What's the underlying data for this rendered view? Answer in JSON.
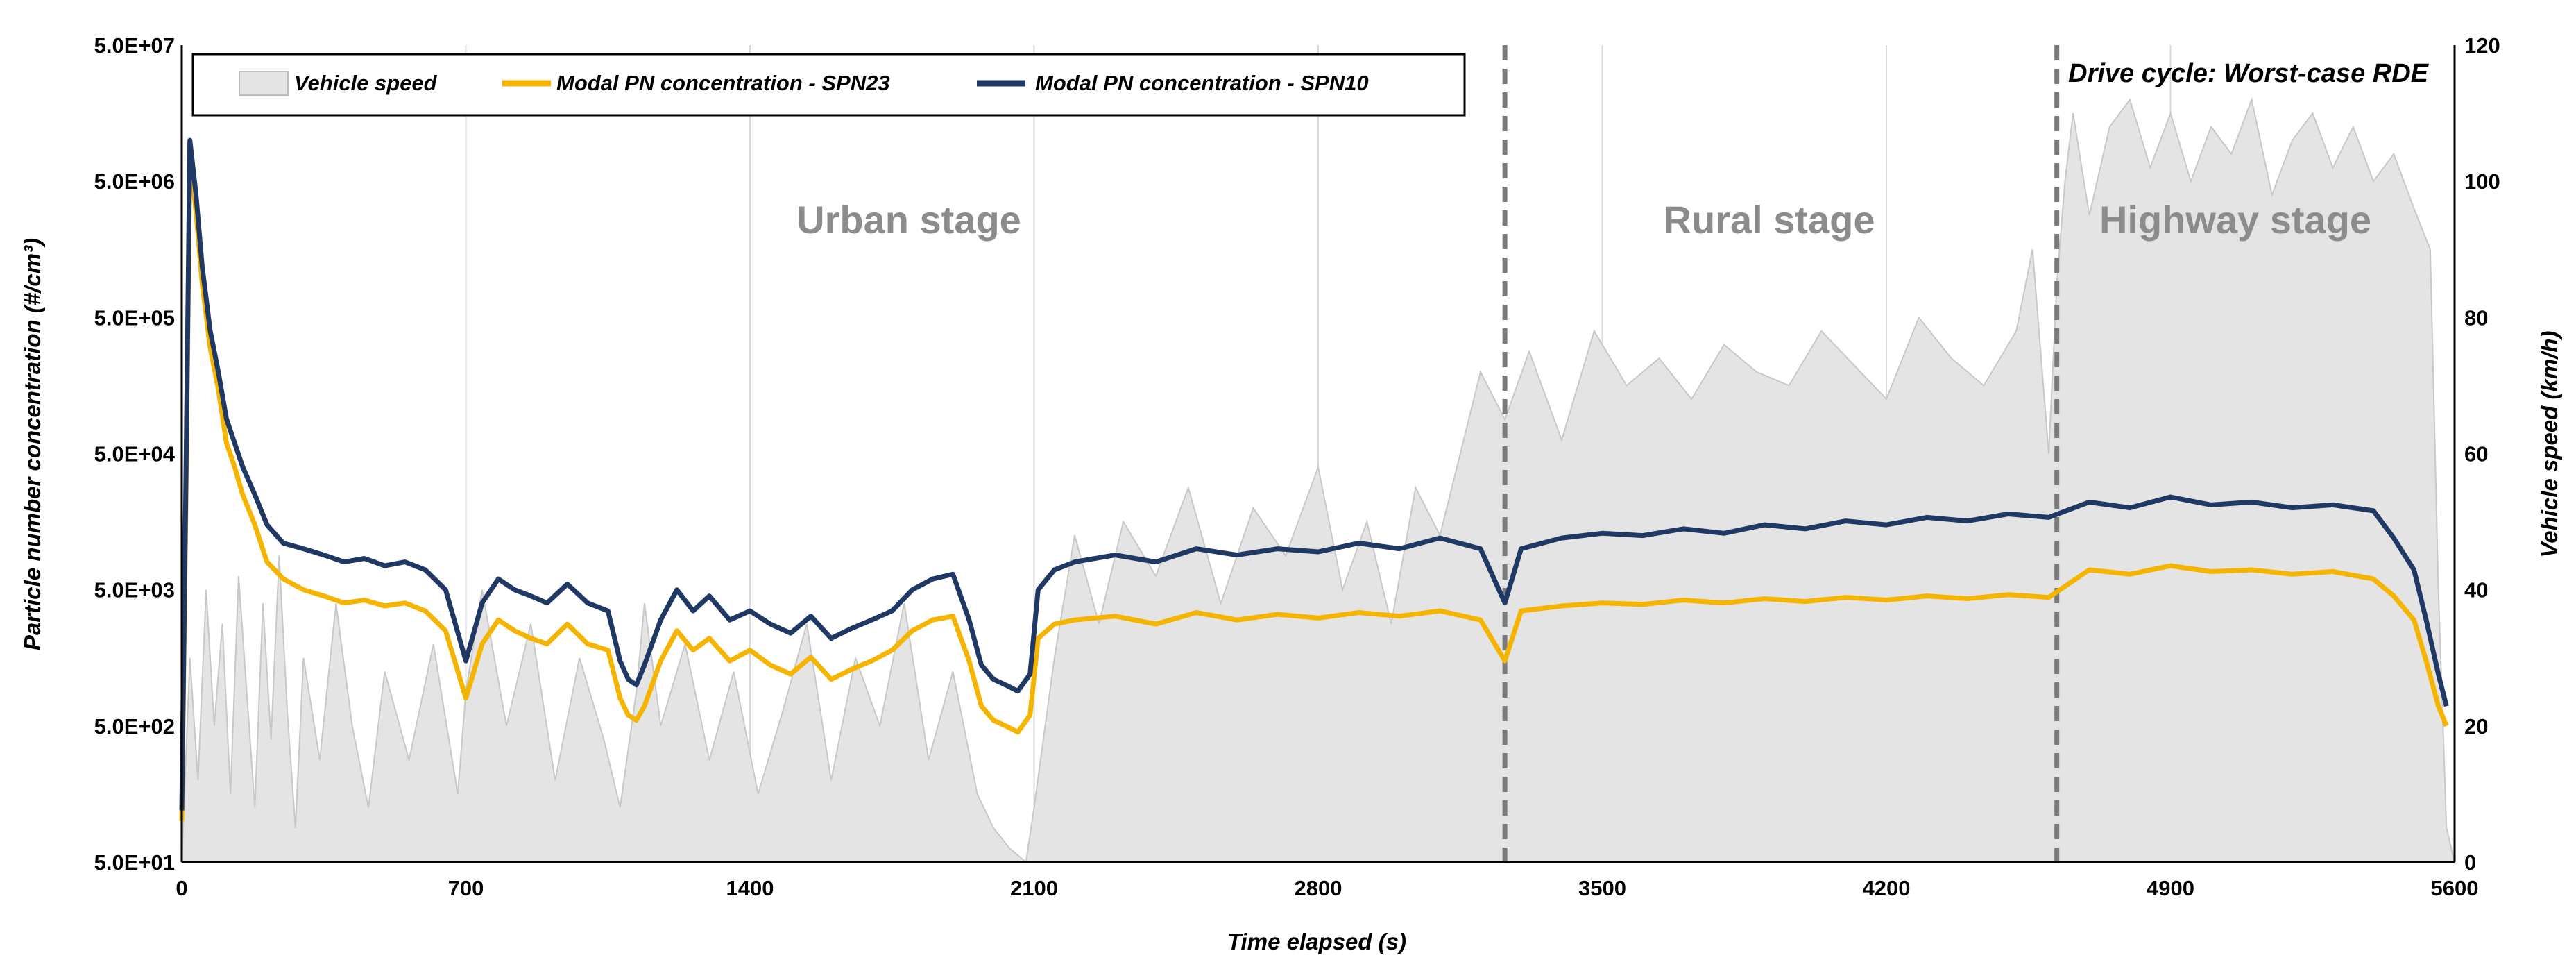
{
  "chart_data": {
    "type": "line",
    "title": "",
    "annotation": "Drive cycle: Worst-case RDE",
    "xlabel": "Time elapsed (s)",
    "ylabel_left": "Particle number concentration (#/cm³)",
    "ylabel_right": "Vehicle speed (km/h)",
    "xlim": [
      0,
      5600
    ],
    "ylim_left": [
      50,
      50000000
    ],
    "ylim_right": [
      0,
      120
    ],
    "y_left_scale": "log",
    "x_ticks": [
      "0",
      "700",
      "1400",
      "2100",
      "2800",
      "3500",
      "4200",
      "4900",
      "5600"
    ],
    "x_tick_values": [
      0,
      700,
      1400,
      2100,
      2800,
      3500,
      4200,
      4900,
      5600
    ],
    "y_left_ticks": [
      "5.0E+01",
      "5.0E+02",
      "5.0E+03",
      "5.0E+04",
      "5.0E+05",
      "5.0E+06",
      "5.0E+07"
    ],
    "y_left_tick_values": [
      50,
      500,
      5000,
      50000,
      500000,
      5000000,
      50000000
    ],
    "y_right_ticks": [
      "0",
      "20",
      "40",
      "60",
      "80",
      "100",
      "120"
    ],
    "y_right_tick_values": [
      0,
      20,
      40,
      60,
      80,
      100,
      120
    ],
    "grid": "vertical",
    "legend": {
      "placement": "top-left",
      "entries": [
        "Vehicle speed",
        "Modal PN concentration - SPN23",
        "Modal PN concentration - SPN10"
      ]
    },
    "stages": [
      {
        "label": "Urban stage",
        "x_center": 1470
      },
      {
        "label": "Rural stage",
        "x_center": 3880
      },
      {
        "label": "Highway stage",
        "x_center": 5000
      }
    ],
    "stage_boundaries": [
      3260,
      4620
    ],
    "colors": {
      "speed_fill": "#e4e4e4",
      "speed_line": "#c8c8c8",
      "spn23": "#f5b400",
      "spn10": "#1f3864",
      "boundary": "#7a7a7a",
      "grid": "#d9d9d9"
    },
    "series": [
      {
        "name": "Vehicle speed",
        "axis": "right",
        "x": [
          0,
          20,
          40,
          60,
          80,
          100,
          120,
          140,
          160,
          180,
          200,
          220,
          240,
          260,
          280,
          300,
          340,
          380,
          420,
          460,
          500,
          560,
          620,
          680,
          700,
          740,
          800,
          860,
          920,
          980,
          1040,
          1080,
          1120,
          1140,
          1180,
          1240,
          1300,
          1360,
          1420,
          1480,
          1540,
          1600,
          1660,
          1720,
          1780,
          1840,
          1900,
          1960,
          2000,
          2040,
          2080,
          2100,
          2150,
          2200,
          2260,
          2320,
          2400,
          2480,
          2560,
          2640,
          2720,
          2800,
          2860,
          2920,
          2980,
          3040,
          3100,
          3150,
          3200,
          3260,
          3320,
          3400,
          3480,
          3560,
          3640,
          3720,
          3800,
          3880,
          3960,
          4040,
          4120,
          4200,
          4280,
          4360,
          4440,
          4520,
          4560,
          4600,
          4620,
          4640,
          4660,
          4700,
          4750,
          4800,
          4850,
          4900,
          4950,
          5000,
          5050,
          5100,
          5150,
          5200,
          5250,
          5300,
          5350,
          5400,
          5450,
          5500,
          5540,
          5560,
          5580,
          5600
        ],
        "values": [
          0,
          30,
          12,
          40,
          20,
          35,
          10,
          42,
          25,
          8,
          38,
          18,
          45,
          22,
          5,
          30,
          15,
          38,
          20,
          8,
          28,
          15,
          32,
          10,
          25,
          40,
          20,
          35,
          12,
          30,
          18,
          8,
          25,
          38,
          20,
          32,
          15,
          28,
          10,
          22,
          35,
          12,
          30,
          20,
          38,
          15,
          28,
          10,
          5,
          2,
          0,
          8,
          30,
          48,
          35,
          50,
          42,
          55,
          38,
          52,
          45,
          58,
          40,
          50,
          35,
          55,
          48,
          60,
          72,
          65,
          75,
          62,
          78,
          70,
          74,
          68,
          76,
          72,
          70,
          78,
          73,
          68,
          80,
          74,
          70,
          78,
          90,
          60,
          85,
          100,
          110,
          95,
          108,
          112,
          102,
          110,
          100,
          108,
          104,
          112,
          98,
          106,
          110,
          102,
          108,
          100,
          104,
          96,
          90,
          40,
          5,
          0
        ]
      },
      {
        "name": "Modal PN concentration - SPN23",
        "axis": "left",
        "x": [
          0,
          10,
          20,
          35,
          50,
          70,
          90,
          110,
          130,
          150,
          180,
          210,
          250,
          300,
          350,
          400,
          450,
          500,
          550,
          600,
          650,
          700,
          740,
          780,
          820,
          860,
          900,
          950,
          1000,
          1050,
          1080,
          1100,
          1120,
          1140,
          1180,
          1220,
          1260,
          1300,
          1350,
          1400,
          1450,
          1500,
          1550,
          1600,
          1650,
          1700,
          1750,
          1800,
          1850,
          1900,
          1940,
          1970,
          2000,
          2030,
          2060,
          2090,
          2110,
          2150,
          2200,
          2300,
          2400,
          2500,
          2600,
          2700,
          2800,
          2900,
          3000,
          3100,
          3200,
          3260,
          3300,
          3400,
          3500,
          3600,
          3700,
          3800,
          3900,
          4000,
          4100,
          4200,
          4300,
          4400,
          4500,
          4600,
          4700,
          4800,
          4900,
          5000,
          5100,
          5200,
          5300,
          5400,
          5450,
          5500,
          5530,
          5560,
          5580
        ],
        "values": [
          100,
          20000,
          8000000,
          3000000,
          900000,
          300000,
          150000,
          60000,
          40000,
          25000,
          15000,
          8000,
          6000,
          5000,
          4500,
          4000,
          4200,
          3800,
          4000,
          3500,
          2500,
          800,
          2000,
          3000,
          2500,
          2200,
          2000,
          2800,
          2000,
          1800,
          800,
          600,
          550,
          700,
          1500,
          2500,
          1800,
          2200,
          1500,
          1800,
          1400,
          1200,
          1600,
          1100,
          1300,
          1500,
          1800,
          2500,
          3000,
          3200,
          1500,
          700,
          550,
          500,
          450,
          600,
          2200,
          2800,
          3000,
          3200,
          2800,
          3400,
          3000,
          3300,
          3100,
          3400,
          3200,
          3500,
          3000,
          1500,
          3500,
          3800,
          4000,
          3900,
          4200,
          4000,
          4300,
          4100,
          4400,
          4200,
          4500,
          4300,
          4600,
          4400,
          7000,
          6500,
          7500,
          6800,
          7000,
          6500,
          6800,
          6000,
          4500,
          3000,
          1500,
          700,
          500
        ]
      },
      {
        "name": "Modal PN concentration - SPN10",
        "axis": "left",
        "x": [
          0,
          10,
          20,
          35,
          50,
          70,
          90,
          110,
          130,
          150,
          180,
          210,
          250,
          300,
          350,
          400,
          450,
          500,
          550,
          600,
          650,
          700,
          740,
          780,
          820,
          860,
          900,
          950,
          1000,
          1050,
          1080,
          1100,
          1120,
          1140,
          1180,
          1220,
          1260,
          1300,
          1350,
          1400,
          1450,
          1500,
          1550,
          1600,
          1650,
          1700,
          1750,
          1800,
          1850,
          1900,
          1940,
          1970,
          2000,
          2030,
          2060,
          2090,
          2110,
          2150,
          2200,
          2300,
          2400,
          2500,
          2600,
          2700,
          2800,
          2900,
          3000,
          3100,
          3200,
          3260,
          3300,
          3400,
          3500,
          3600,
          3700,
          3800,
          3900,
          4000,
          4100,
          4200,
          4300,
          4400,
          4500,
          4600,
          4700,
          4800,
          4900,
          5000,
          5100,
          5200,
          5300,
          5400,
          5450,
          5500,
          5530,
          5560,
          5580
        ],
        "values": [
          120,
          30000,
          10000000,
          4000000,
          1200000,
          400000,
          200000,
          90000,
          60000,
          40000,
          25000,
          15000,
          11000,
          10000,
          9000,
          8000,
          8500,
          7500,
          8000,
          7000,
          5000,
          1500,
          4000,
          6000,
          5000,
          4500,
          4000,
          5500,
          4000,
          3500,
          1500,
          1100,
          1000,
          1400,
          3000,
          5000,
          3500,
          4500,
          3000,
          3500,
          2800,
          2400,
          3200,
          2200,
          2600,
          3000,
          3500,
          5000,
          6000,
          6500,
          3000,
          1400,
          1100,
          1000,
          900,
          1200,
          5000,
          7000,
          8000,
          9000,
          8000,
          10000,
          9000,
          10000,
          9500,
          11000,
          10000,
          12000,
          10000,
          4000,
          10000,
          12000,
          13000,
          12500,
          14000,
          13000,
          15000,
          14000,
          16000,
          15000,
          17000,
          16000,
          18000,
          17000,
          22000,
          20000,
          24000,
          21000,
          22000,
          20000,
          21000,
          19000,
          12000,
          7000,
          3000,
          1200,
          700
        ]
      }
    ]
  }
}
